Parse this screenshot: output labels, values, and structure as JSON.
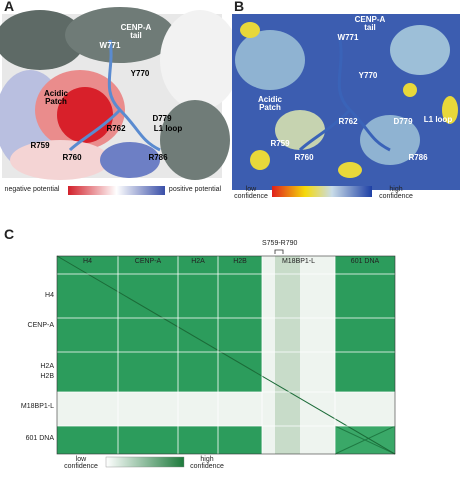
{
  "panels": [
    {
      "label": "A",
      "annotations": [
        "CENP-A tail",
        "W771",
        "Y770",
        "Acidic Patch",
        "R762",
        "D779",
        "L1 loop",
        "R759",
        "R760",
        "R786"
      ],
      "colorbar": {
        "low": "negative potential",
        "high": "positive potential"
      }
    },
    {
      "label": "B",
      "annotations": [
        "CENP-A tail",
        "W771",
        "Y770",
        "Acidic Patch",
        "R762",
        "D779",
        "L1 loop",
        "R759",
        "R760",
        "R786"
      ],
      "colorbar": {
        "low": "low confidence",
        "high": "high confidence"
      }
    },
    {
      "label": "C",
      "columns": [
        "H4",
        "CENP-A",
        "H2A",
        "H2B",
        "M18BP1-L",
        "601 DNA"
      ],
      "rows": [
        "H4",
        "CENP-A",
        "H2A",
        "H2B",
        "M18BP1-L",
        "601 DNA"
      ],
      "highlight": "S759-R790",
      "colorbar": {
        "low": "low confidence",
        "high": "high confidence"
      }
    }
  ]
}
